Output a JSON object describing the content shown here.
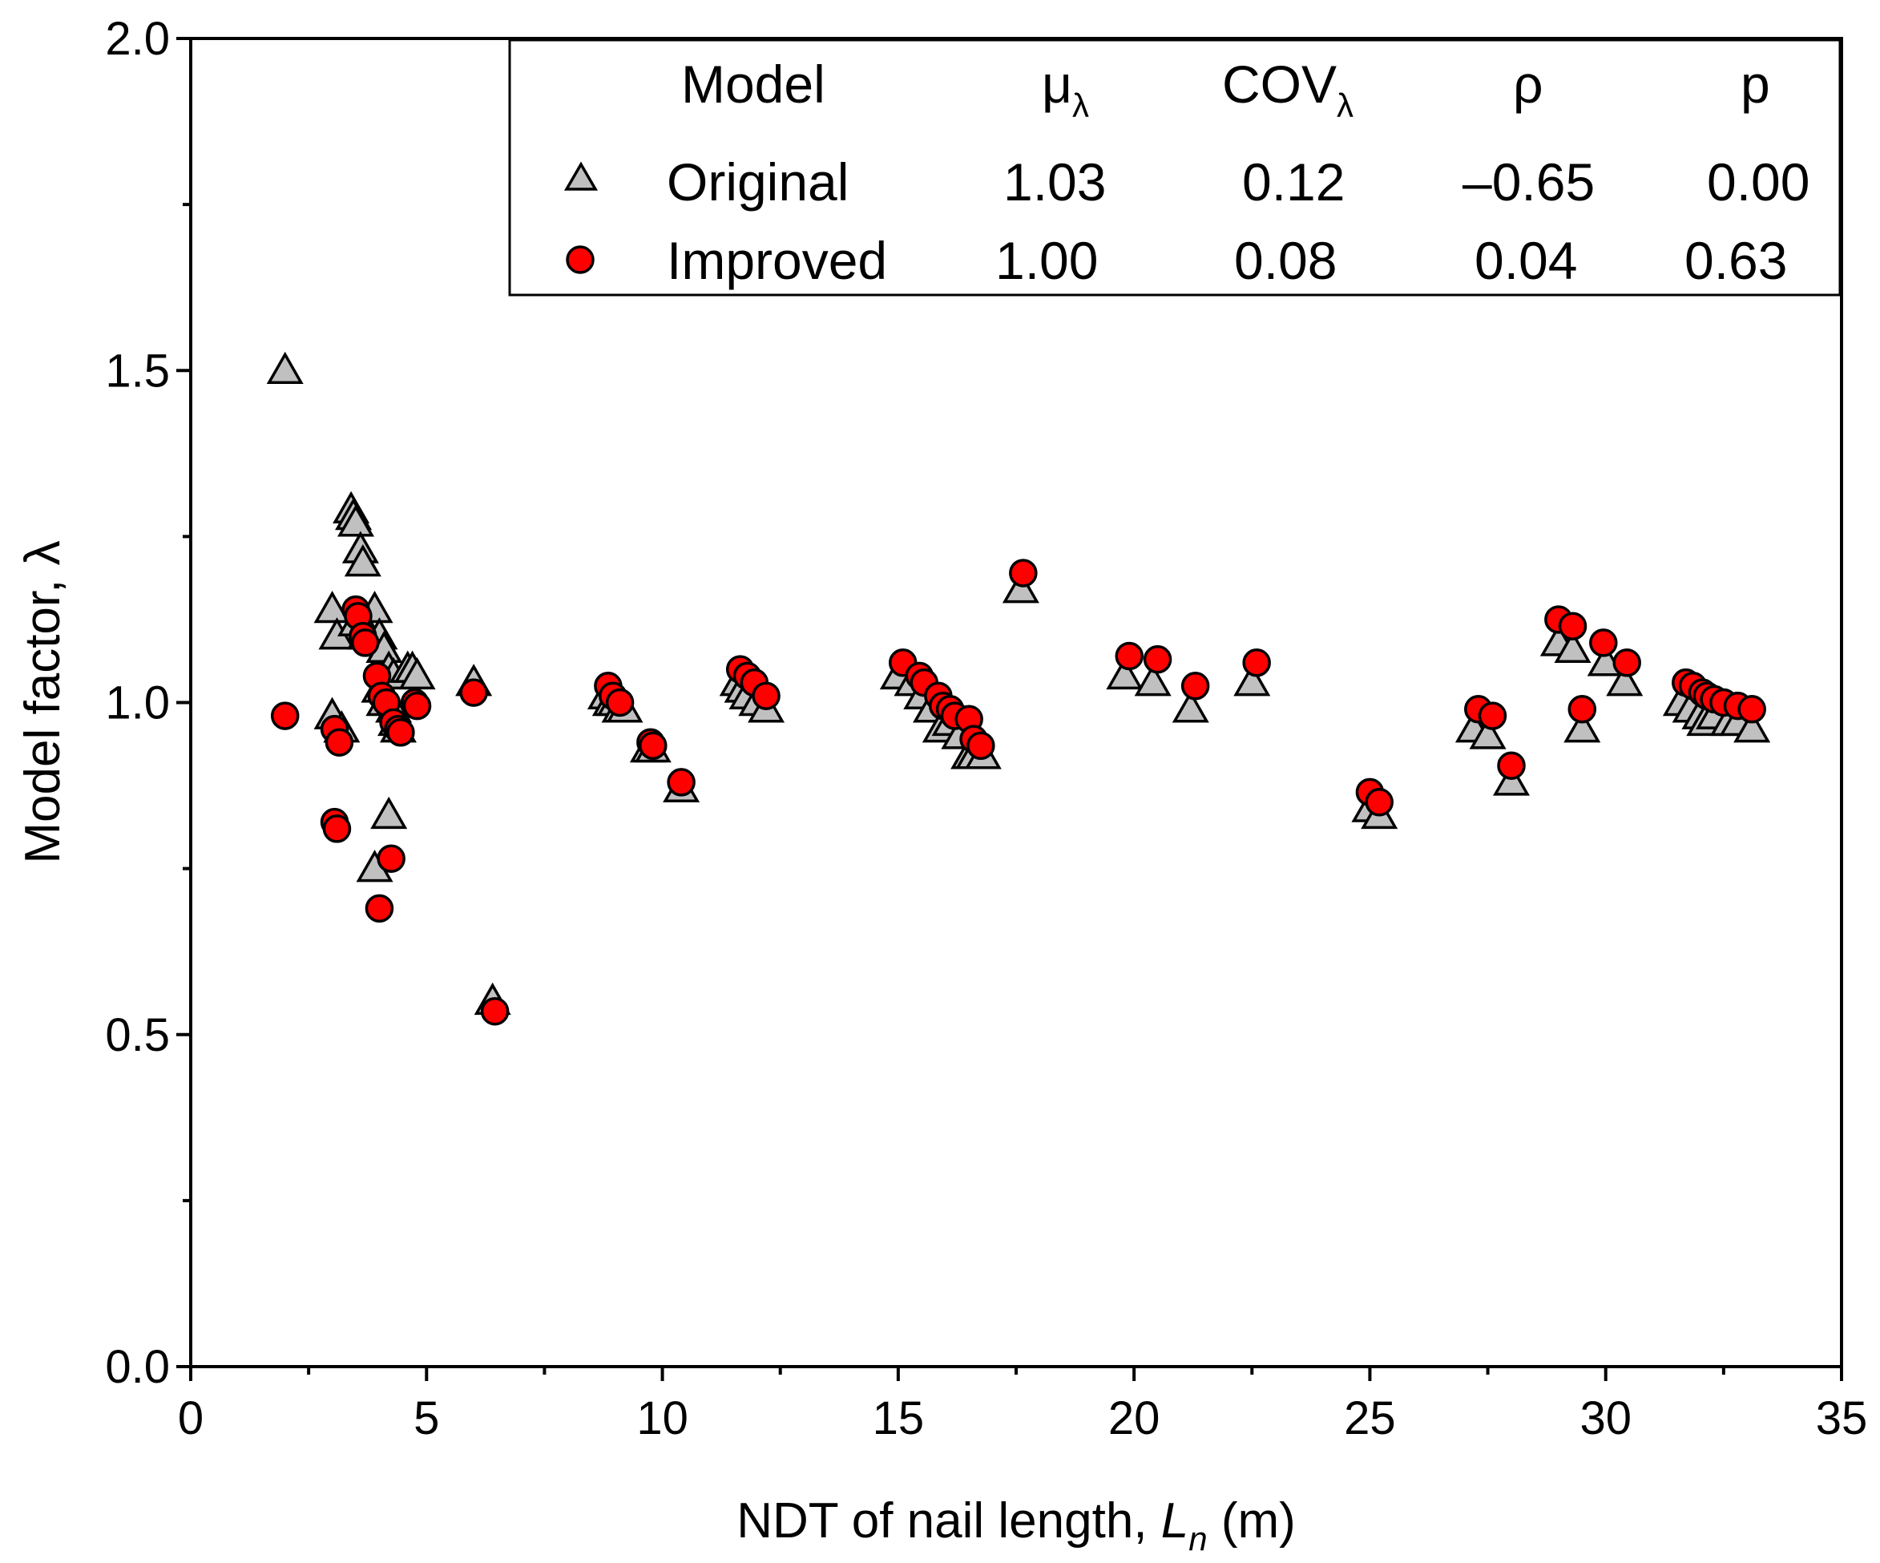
{
  "chart_data": {
    "type": "scatter",
    "xlabel_prefix": "NDT of nail length, ",
    "xlabel_var": "L",
    "xlabel_sub": "n",
    "xlabel_suffix": " (m)",
    "ylabel": "Model factor, λ",
    "xlim": [
      0,
      35
    ],
    "ylim": [
      0.0,
      2.0
    ],
    "x_ticks": [
      0,
      5,
      10,
      15,
      20,
      25,
      30,
      35
    ],
    "x_tick_labels": [
      "0",
      "5",
      "10",
      "15",
      "20",
      "25",
      "30",
      "35"
    ],
    "y_ticks": [
      0.0,
      0.5,
      1.0,
      1.5,
      2.0
    ],
    "y_tick_labels": [
      "0.0",
      "0.5",
      "1.0",
      "1.5",
      "2.0"
    ],
    "legend": {
      "headers": [
        "Model",
        "μ",
        "COV",
        "ρ",
        "p"
      ],
      "header_subs": [
        "",
        "λ",
        "λ",
        "",
        ""
      ],
      "rows": [
        {
          "name": "Original",
          "marker": "triangle",
          "mu": "1.03",
          "cov": "0.12",
          "rho": "–0.65",
          "p": "0.00"
        },
        {
          "name": "Improved",
          "marker": "circle",
          "mu": "1.00",
          "cov": "0.08",
          "rho": "0.04",
          "p": "0.63"
        }
      ]
    },
    "series": [
      {
        "name": "Original",
        "marker": "triangle",
        "color": "#c0c0c0",
        "points": [
          [
            2.0,
            1.5
          ],
          [
            3.0,
            1.14
          ],
          [
            3.1,
            1.1
          ],
          [
            3.0,
            0.98
          ],
          [
            3.2,
            0.96
          ],
          [
            3.4,
            1.29
          ],
          [
            3.45,
            1.28
          ],
          [
            3.5,
            1.27
          ],
          [
            3.6,
            1.23
          ],
          [
            3.65,
            1.21
          ],
          [
            3.5,
            1.12
          ],
          [
            3.7,
            1.1
          ],
          [
            3.8,
            1.1
          ],
          [
            3.9,
            1.14
          ],
          [
            4.0,
            1.1
          ],
          [
            4.1,
            1.08
          ],
          [
            4.2,
            1.05
          ],
          [
            4.3,
            1.04
          ],
          [
            4.0,
            1.02
          ],
          [
            4.1,
            1.0
          ],
          [
            4.3,
            0.99
          ],
          [
            4.35,
            0.97
          ],
          [
            4.4,
            0.96
          ],
          [
            4.2,
            0.83
          ],
          [
            3.9,
            0.75
          ],
          [
            4.6,
            1.05
          ],
          [
            4.7,
            1.05
          ],
          [
            4.8,
            1.04
          ],
          [
            6.0,
            1.03
          ],
          [
            6.4,
            0.55
          ],
          [
            8.8,
            1.01
          ],
          [
            8.9,
            1.0
          ],
          [
            9.0,
            1.0
          ],
          [
            9.1,
            0.99
          ],
          [
            9.2,
            0.99
          ],
          [
            9.7,
            0.93
          ],
          [
            9.8,
            0.93
          ],
          [
            10.4,
            0.87
          ],
          [
            11.6,
            1.03
          ],
          [
            11.7,
            1.02
          ],
          [
            11.8,
            1.01
          ],
          [
            12.0,
            1.0
          ],
          [
            12.2,
            0.99
          ],
          [
            15.0,
            1.04
          ],
          [
            15.3,
            1.03
          ],
          [
            15.5,
            1.01
          ],
          [
            15.7,
            0.99
          ],
          [
            15.9,
            0.96
          ],
          [
            16.1,
            0.97
          ],
          [
            16.3,
            0.95
          ],
          [
            16.5,
            0.92
          ],
          [
            16.6,
            0.92
          ],
          [
            16.8,
            0.92
          ],
          [
            17.6,
            1.17
          ],
          [
            19.8,
            1.04
          ],
          [
            20.4,
            1.03
          ],
          [
            21.2,
            0.99
          ],
          [
            22.5,
            1.03
          ],
          [
            25.0,
            0.84
          ],
          [
            25.2,
            0.83
          ],
          [
            27.2,
            0.96
          ],
          [
            27.5,
            0.95
          ],
          [
            28.0,
            0.88
          ],
          [
            29.0,
            1.09
          ],
          [
            29.3,
            1.08
          ],
          [
            29.5,
            0.96
          ],
          [
            30.0,
            1.06
          ],
          [
            30.4,
            1.03
          ],
          [
            31.6,
            1.0
          ],
          [
            31.8,
            0.99
          ],
          [
            32.0,
            0.98
          ],
          [
            32.1,
            0.97
          ],
          [
            32.3,
            0.98
          ],
          [
            32.6,
            0.97
          ],
          [
            32.8,
            0.97
          ],
          [
            33.1,
            0.96
          ]
        ]
      },
      {
        "name": "Improved",
        "marker": "circle",
        "color": "#ff0000",
        "points": [
          [
            2.0,
            0.98
          ],
          [
            3.05,
            0.96
          ],
          [
            3.15,
            0.94
          ],
          [
            3.05,
            0.82
          ],
          [
            3.1,
            0.81
          ],
          [
            3.5,
            1.14
          ],
          [
            3.55,
            1.13
          ],
          [
            3.65,
            1.1
          ],
          [
            3.7,
            1.09
          ],
          [
            3.95,
            1.04
          ],
          [
            4.05,
            1.01
          ],
          [
            4.15,
            1.0
          ],
          [
            4.3,
            0.97
          ],
          [
            4.4,
            0.96
          ],
          [
            4.45,
            0.955
          ],
          [
            4.25,
            0.765
          ],
          [
            4.0,
            0.69
          ],
          [
            4.75,
            1.0
          ],
          [
            4.8,
            0.995
          ],
          [
            6.0,
            1.015
          ],
          [
            6.45,
            0.535
          ],
          [
            8.85,
            1.025
          ],
          [
            8.95,
            1.01
          ],
          [
            9.1,
            1.0
          ],
          [
            9.75,
            0.94
          ],
          [
            9.8,
            0.935
          ],
          [
            10.4,
            0.88
          ],
          [
            11.65,
            1.05
          ],
          [
            11.8,
            1.04
          ],
          [
            11.95,
            1.03
          ],
          [
            12.2,
            1.01
          ],
          [
            15.1,
            1.06
          ],
          [
            15.45,
            1.04
          ],
          [
            15.55,
            1.03
          ],
          [
            15.85,
            1.01
          ],
          [
            15.95,
            0.995
          ],
          [
            16.1,
            0.99
          ],
          [
            16.2,
            0.98
          ],
          [
            16.5,
            0.975
          ],
          [
            16.6,
            0.945
          ],
          [
            16.75,
            0.935
          ],
          [
            17.65,
            1.195
          ],
          [
            19.9,
            1.07
          ],
          [
            20.5,
            1.065
          ],
          [
            21.3,
            1.025
          ],
          [
            22.6,
            1.06
          ],
          [
            25.0,
            0.865
          ],
          [
            25.2,
            0.85
          ],
          [
            27.3,
            0.99
          ],
          [
            27.6,
            0.98
          ],
          [
            28.0,
            0.905
          ],
          [
            29.0,
            1.125
          ],
          [
            29.3,
            1.115
          ],
          [
            29.5,
            0.99
          ],
          [
            29.95,
            1.09
          ],
          [
            30.45,
            1.06
          ],
          [
            31.7,
            1.03
          ],
          [
            31.85,
            1.025
          ],
          [
            32.05,
            1.015
          ],
          [
            32.15,
            1.01
          ],
          [
            32.3,
            1.005
          ],
          [
            32.5,
            1.0
          ],
          [
            32.8,
            0.995
          ],
          [
            33.1,
            0.99
          ]
        ]
      }
    ]
  }
}
